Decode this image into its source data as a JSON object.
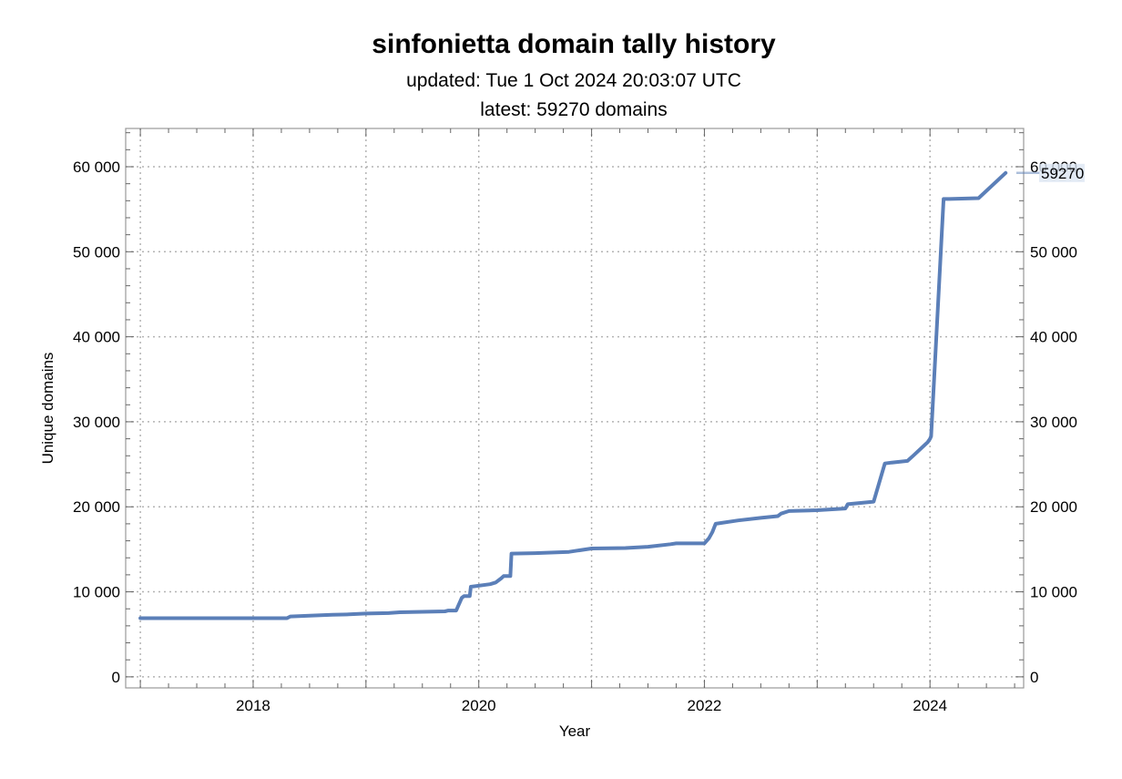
{
  "header": {
    "title": "sinfonietta domain tally history",
    "updated": "updated: Tue 1 Oct 2024 20:03:07 UTC",
    "latest": "latest: 59270 domains"
  },
  "colors": {
    "series": "#5b7fb8",
    "grid": "#b3b3b3",
    "frame": "#999999",
    "callout_fill": "#dce6f3"
  },
  "chart_data": {
    "type": "line",
    "title": "sinfonietta domain tally history",
    "xlabel": "Year",
    "ylabel": "Unique domains",
    "xlim": [
      2016.87,
      2024.83
    ],
    "ylim": [
      -1300,
      64500
    ],
    "x_ticks": [
      2018,
      2020,
      2022,
      2024
    ],
    "x_tick_labels": [
      "2018",
      "2020",
      "2022",
      "2024"
    ],
    "y_ticks": [
      0,
      10000,
      20000,
      30000,
      40000,
      50000,
      60000
    ],
    "y_tick_labels": [
      "0",
      "10 000",
      "20 000",
      "30 000",
      "40 000",
      "50 000",
      "60 000"
    ],
    "grid": true,
    "end_label": "59270",
    "series": [
      {
        "x": [
          2017.0,
          2017.9,
          2018.3,
          2018.33,
          2018.5,
          2018.6,
          2018.7,
          2018.85,
          2019.0,
          2019.2,
          2019.3,
          2019.5,
          2019.7,
          2019.73,
          2019.8,
          2019.85,
          2019.87,
          2019.92,
          2019.93,
          2020.1,
          2020.15,
          2020.2,
          2020.22,
          2020.28,
          2020.29,
          2020.5,
          2020.8,
          2021.0,
          2021.3,
          2021.5,
          2021.7,
          2021.75,
          2022.0,
          2022.04,
          2022.07,
          2022.1,
          2022.3,
          2022.5,
          2022.65,
          2022.68,
          2022.75,
          2023.0,
          2023.25,
          2023.27,
          2023.5,
          2023.6,
          2023.66,
          2023.8,
          2023.85,
          2023.98,
          2024.0,
          2024.01,
          2024.12,
          2024.14,
          2024.17,
          2024.43,
          2024.67
        ],
        "y": [
          6900,
          6900,
          6900,
          7100,
          7200,
          7250,
          7300,
          7350,
          7450,
          7500,
          7600,
          7650,
          7700,
          7800,
          7800,
          9300,
          9500,
          9500,
          10600,
          10900,
          11100,
          11600,
          11850,
          11850,
          14500,
          14550,
          14700,
          15100,
          15150,
          15300,
          15600,
          15700,
          15700,
          16300,
          17000,
          18000,
          18400,
          18700,
          18900,
          19200,
          19500,
          19600,
          19800,
          20300,
          20600,
          25100,
          25200,
          25400,
          26000,
          27600,
          28000,
          28300,
          56200,
          56200,
          56200,
          56300,
          59270
        ]
      }
    ]
  }
}
